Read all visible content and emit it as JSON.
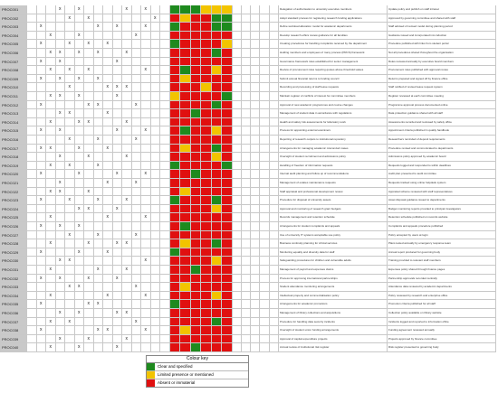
{
  "rows": [
    {
      "id": "PROC001",
      "x": [
        3,
        5,
        10,
        12
      ],
      "c": "gggyyy",
      "t1": "Delegation of authorisation to university executive members",
      "t2": "Update policy and publish on staff intranet"
    },
    {
      "id": "PROC002",
      "x": [
        4,
        6,
        13
      ],
      "c": "ryrrgg",
      "t1": "Adopt standard process for registering research funding applications",
      "t2": "Approved by governing committee and shared with staff"
    },
    {
      "id": "PROC003",
      "x": [
        1,
        7,
        9,
        12
      ],
      "c": "grrrgg",
      "t1": "Define workload allocation model for academic departments",
      "t2": "Staff advised of revised model during planning period"
    },
    {
      "id": "PROC004",
      "x": [
        2,
        5,
        11
      ],
      "c": "rrrrrr",
      "t1": "Develop research ethics review guidance for all faculties",
      "t2": "Guidance issued and incorporated into induction"
    },
    {
      "id": "PROC005",
      "x": [
        1,
        4,
        6,
        8
      ],
      "c": "grrrry",
      "t1": "Creating procedures for handling complaints received by the department",
      "t2": "Procedure published with links from student portal"
    },
    {
      "id": "PROC006",
      "x": [
        2,
        3,
        5,
        7,
        10
      ],
      "c": "rrrrgr",
      "t1": "Holding members and employees of many process (PRCS) framework",
      "t2": "Not all procedures shared throughout the organisation"
    },
    {
      "id": "PROC007",
      "x": [
        1,
        3,
        9
      ],
      "c": "rrrrrr",
      "t1": "Governance framework roles established for senior management",
      "t2": "Roles reviewed annually by executive board members"
    },
    {
      "id": "PROC008",
      "x": [
        2,
        4,
        6,
        12
      ],
      "c": "rgrryr",
      "t1": "Review of procurement rules requiring quotes above threshold values",
      "t2": "Procurement rules published with approval routes"
    },
    {
      "id": "PROC009",
      "x": [
        1,
        3,
        5,
        7
      ],
      "c": "ryrrrr",
      "t1": "Submit annual financial returns to funding council",
      "t2": "Returns prepared and signed off by finance office"
    },
    {
      "id": "PROC010",
      "x": [
        4,
        8,
        9,
        10
      ],
      "c": "rrryrr",
      "t1": "Recording and processing of staff leave requests",
      "t2": "Staff notified of revised leave request system"
    },
    {
      "id": "PROC011",
      "x": [
        2,
        3,
        5,
        9
      ],
      "c": "yrrrrg",
      "t1": "Maintain register of conflicts of interest for committee members",
      "t2": "Register reviewed at each committee meeting"
    },
    {
      "id": "PROC012",
      "x": [
        1,
        6,
        7,
        11
      ],
      "c": "rrrrgr",
      "t1": "Approval of new academic programmes and course changes",
      "t2": "Programme approval process documented online"
    },
    {
      "id": "PROC013",
      "x": [
        3,
        4,
        8
      ],
      "c": "rrgrrr",
      "t1": "Management of student data in accordance with regulations",
      "t2": "Data protection guidance shared with all staff"
    },
    {
      "id": "PROC014",
      "x": [
        2,
        5,
        6,
        10
      ],
      "c": "rrrrrr",
      "t1": "Health and safety risk assessments for laboratory work",
      "t2": "Assessments recorded and reviewed by safety office"
    },
    {
      "id": "PROC015",
      "x": [
        1,
        3,
        9,
        12
      ],
      "c": "rgrryr",
      "t1": "Process for appointing external examiners",
      "t2": "Appointment criteria published in quality handbook"
    },
    {
      "id": "PROC016",
      "x": [
        4,
        7,
        11
      ],
      "c": "rrrrrr",
      "t1": "Reporting of research outputs to institutional repository",
      "t2": "Researchers reminded of deposit requirements"
    },
    {
      "id": "PROC017",
      "x": [
        1,
        2,
        5,
        8
      ],
      "c": "ryrrgr",
      "t1": "Arrangements for managing academic misconduct cases",
      "t2": "Procedure revised and communicated to departments"
    },
    {
      "id": "PROC018",
      "x": [
        3,
        6,
        10
      ],
      "c": "rrrryr",
      "t1": "Oversight of student recruitment and admissions policy",
      "t2": "Admissions policy approved by academic board"
    },
    {
      "id": "PROC019",
      "x": [
        2,
        4,
        7
      ],
      "c": "grrrrg",
      "t1": "Handling of freedom of information requests",
      "t2": "Requests logged and responded to within deadlines"
    },
    {
      "id": "PROC020",
      "x": [
        1,
        5,
        9,
        12
      ],
      "c": "rrgrrr",
      "t1": "Internal audit planning and follow up of recommendations",
      "t2": "Audit plan presented to audit committee"
    },
    {
      "id": "PROC021",
      "x": [
        3,
        8,
        11
      ],
      "c": "rrrrrr",
      "t1": "Management of estates maintenance requests",
      "t2": "Requests tracked using online helpdesk system"
    },
    {
      "id": "PROC022",
      "x": [
        2,
        3,
        6
      ],
      "c": "ryrrrr",
      "t1": "Staff appraisal and professional development review",
      "t2": "Appraisal scheme reviewed with staff representatives"
    },
    {
      "id": "PROC023",
      "x": [
        1,
        4,
        7,
        10
      ],
      "c": "grrrgr",
      "t1": "Procedure for disposal of university assets",
      "t2": "Asset disposal guidance issued to departments"
    },
    {
      "id": "PROC024",
      "x": [
        5,
        6,
        9
      ],
      "c": "rrrryr",
      "t1": "Approval and monitoring of research grant budgets",
      "t2": "Budget monitoring reports provided to principal investigators"
    },
    {
      "id": "PROC025",
      "x": [
        2,
        8,
        12
      ],
      "c": "rrrrrr",
      "t1": "Records management and retention schedule",
      "t2": "Retention schedule published on records website"
    },
    {
      "id": "PROC026",
      "x": [
        1,
        3,
        5
      ],
      "c": "rgrrrr",
      "t1": "Arrangements for student complaints and appeals",
      "t2": "Complaints and appeals procedure published"
    },
    {
      "id": "PROC027",
      "x": [
        4,
        7,
        11
      ],
      "c": "rrrrrr",
      "t1": "Use of university IT systems acceptable use policy",
      "t2": "Policy accepted by users at login"
    },
    {
      "id": "PROC028",
      "x": [
        2,
        6,
        9,
        10
      ],
      "c": "ryrrgr",
      "t1": "Business continuity planning for critical services",
      "t2": "Plans tested annually by emergency response team"
    },
    {
      "id": "PROC029",
      "x": [
        1,
        5,
        8
      ],
      "c": "grrrrr",
      "t1": "Monitoring equality and diversity data for staff",
      "t2": "Annual report produced for governing body"
    },
    {
      "id": "PROC030",
      "x": [
        3,
        4,
        12
      ],
      "c": "rrrryr",
      "t1": "Safeguarding procedures for children and vulnerable adults",
      "t2": "Training provided to relevant staff members"
    },
    {
      "id": "PROC031",
      "x": [
        2,
        7,
        10
      ],
      "c": "rrgrrr",
      "t1": "Management of payroll and expenses claims",
      "t2": "Expenses policy shared through finance pages"
    },
    {
      "id": "PROC032",
      "x": [
        1,
        3,
        6,
        9
      ],
      "c": "rrrrrr",
      "t1": "Process for approving international partnerships",
      "t2": "Partnership approvals recorded centrally"
    },
    {
      "id": "PROC033",
      "x": [
        4,
        5,
        11
      ],
      "c": "ryrrrr",
      "t1": "Student attendance monitoring arrangements",
      "t2": "Attendance data reviewed by academic departments"
    },
    {
      "id": "PROC034",
      "x": [
        2,
        8,
        12
      ],
      "c": "rrrryr",
      "t1": "Intellectual property and commercialisation policy",
      "t2": "Policy reviewed by research and enterprise office"
    },
    {
      "id": "PROC035",
      "x": [
        1,
        6,
        7
      ],
      "c": "grrrrr",
      "t1": "Arrangements for academic promotions",
      "t2": "Promotion criteria published for all staff"
    },
    {
      "id": "PROC036",
      "x": [
        3,
        5,
        9,
        10
      ],
      "c": "rrrrrr",
      "t1": "Management of library collections and acquisitions",
      "t2": "Collection policy available on library website"
    },
    {
      "id": "PROC037",
      "x": [
        2,
        4,
        11
      ],
      "c": "rrrrgr",
      "t1": "Procedure for handling data security incidents",
      "t2": "Incidents logged and reported to information office"
    },
    {
      "id": "PROC038",
      "x": [
        1,
        7,
        8,
        12
      ],
      "c": "ryrrrr",
      "t1": "Oversight of student union funding arrangements",
      "t2": "Funding agreement reviewed annually"
    },
    {
      "id": "PROC039",
      "x": [
        3,
        6,
        10
      ],
      "c": "rrrrrr",
      "t1": "Approval of capital expenditure projects",
      "t2": "Projects approved by finance committee"
    },
    {
      "id": "PROC040",
      "x": [
        2,
        5,
        9
      ],
      "c": "rrgrrr",
      "t1": "Annual review of institutional risk register",
      "t2": "Risk register presented to governing body"
    }
  ],
  "colour_key": {
    "title": "Colour key",
    "items": [
      {
        "label": "Clear and specified",
        "color": "#1e8a1e"
      },
      {
        "label": "Limited presence or mentioned",
        "color": "#f2c400"
      },
      {
        "label": "Absent or immaterial",
        "color": "#e01010"
      }
    ]
  },
  "colors": {
    "green": "#1e8a1e",
    "yellow": "#f2c400",
    "red": "#e01010",
    "id_cell": "#c9c9c9"
  }
}
